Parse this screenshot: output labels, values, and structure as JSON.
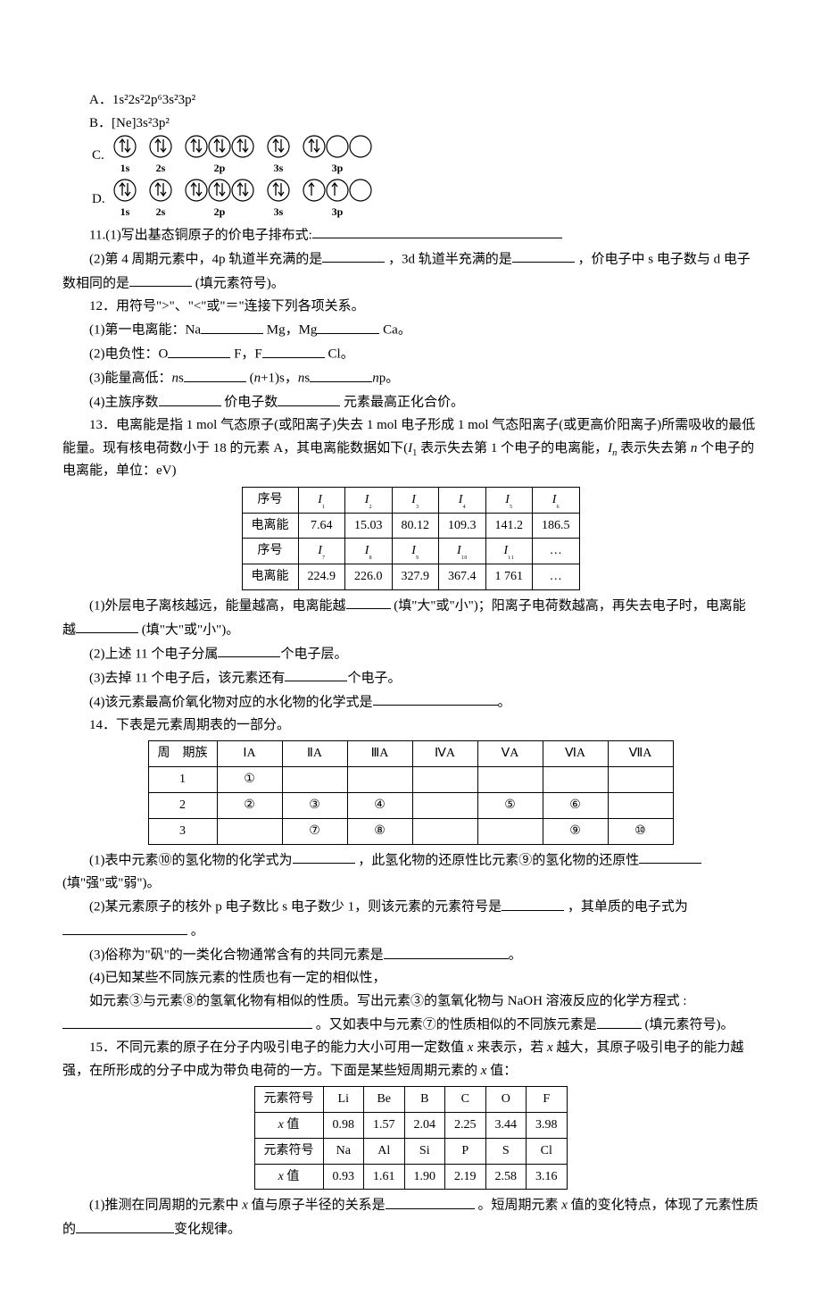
{
  "q10": {
    "optA": "A．1s²2s²2p⁶3s²3p²",
    "optB": "B．[Ne]3s²3p²",
    "optC_label": "C.",
    "optD_label": "D.",
    "orbital_labels": [
      "1s",
      "2s",
      "2p",
      "3s",
      "3p"
    ],
    "orbitals_C": [
      [
        [
          "up",
          "down"
        ]
      ],
      [
        [
          "up",
          "down"
        ]
      ],
      [
        [
          "up",
          "down"
        ],
        [
          "up",
          "down"
        ],
        [
          "up",
          "down"
        ]
      ],
      [
        [
          "up",
          "down"
        ]
      ],
      [
        [
          "up",
          "down"
        ],
        [
          "",
          ""
        ],
        [
          "",
          ""
        ]
      ]
    ],
    "orbitals_D": [
      [
        [
          "up",
          "down"
        ]
      ],
      [
        [
          "up",
          "down"
        ]
      ],
      [
        [
          "up",
          "down"
        ],
        [
          "up",
          "down"
        ],
        [
          "up",
          "down"
        ]
      ],
      [
        [
          "up",
          "down"
        ]
      ],
      [
        [
          "up",
          ""
        ],
        [
          "up",
          ""
        ],
        [
          "",
          ""
        ]
      ]
    ]
  },
  "q11": {
    "p1_a": "11.(1)写出基态铜原子的价电子排布式:",
    "p2_a": "(2)第 4 周期元素中，4p 轨道半充满的是",
    "p2_b": "，3d 轨道半充满的是",
    "p2_c": "，价电子中 s 电子数与 d 电子数相同的是",
    "p2_d": "(填元素符号)。"
  },
  "q12": {
    "stem": "12．用符号\">\"、\"<\"或\"＝\"连接下列各项关系。",
    "p1_a": "(1)第一电离能：Na",
    "p1_b": "Mg，Mg",
    "p1_c": "Ca。",
    "p2_a": "(2)电负性：O",
    "p2_b": "F，F",
    "p2_c": "Cl。",
    "p3_a": "(3)能量高低：",
    "p3_ns": "n",
    "p3_s": "s",
    "p3_b": "(",
    "p3_n1": "n",
    "p3_c": "+1)s，",
    "p3_ns2": "n",
    "p3_s2": "s",
    "p3_np": "n",
    "p3_p": "p。",
    "p4_a": "(4)主族序数",
    "p4_b": "价电子数",
    "p4_c": "元素最高正化合价。"
  },
  "q13": {
    "stem": "13．电离能是指 1 mol 气态原子(或阳离子)失去 1 mol 电子形成 1 mol 气态阳离子(或更高价阳离子)所需吸收的最低能量。现有核电荷数小于 18 的元素 A，其电离能数据如下(",
    "stem_I1a": "I",
    "stem_I1b": "1",
    "stem2": " 表示失去第 1 个电子的电离能，",
    "stem_Ina": "I",
    "stem_Inb": "n",
    "stem3": " 表示失去第 ",
    "stem_n": "n",
    "stem4": " 个电子的电离能，单位：eV)",
    "table": {
      "row1_label": "序号",
      "row1": [
        "I₁",
        "I₂",
        "I₃",
        "I₄",
        "I₅",
        "I₆"
      ],
      "row2_label": "电离能",
      "row2": [
        "7.64",
        "15.03",
        "80.12",
        "109.3",
        "141.2",
        "186.5"
      ],
      "row3_label": "序号",
      "row3": [
        "I₇",
        "I₈",
        "I₉",
        "I₁₀",
        "I₁₁",
        "…"
      ],
      "row4_label": "电离能",
      "row4": [
        "224.9",
        "226.0",
        "327.9",
        "367.4",
        "1 761",
        "…"
      ]
    },
    "p1_a": "(1)外层电子离核越远，能量越高，电离能越",
    "p1_b": "(填\"大\"或\"小\")；阳离子电荷数越高，再失去电子时，电离能越",
    "p1_c": "(填\"大\"或\"小\")。",
    "p2_a": "(2)上述 11 个电子分属",
    "p2_b": "个电子层。",
    "p3_a": "(3)去掉 11 个电子后，该元素还有",
    "p3_b": "个电子。",
    "p4_a": "(4)该元素最高价氧化物对应的水化物的化学式是",
    "p4_b": "。"
  },
  "q14": {
    "stem": "14．下表是元素周期表的一部分。",
    "table": {
      "hdr_label": "周　期族",
      "headers": [
        "ⅠA",
        "ⅡA",
        "ⅢA",
        "ⅣA",
        "ⅤA",
        "ⅥA",
        "ⅦA"
      ],
      "rows": [
        {
          "period": "1",
          "cells": [
            "①",
            "",
            "",
            "",
            "",
            "",
            ""
          ]
        },
        {
          "period": "2",
          "cells": [
            "②",
            "③",
            "④",
            "",
            "⑤",
            "⑥",
            ""
          ]
        },
        {
          "period": "3",
          "cells": [
            "",
            "⑦",
            "⑧",
            "",
            "",
            "⑨",
            "⑩"
          ]
        }
      ]
    },
    "p1_a": "(1)表中元素⑩的氢化物的化学式为",
    "p1_b": "，此氢化物的还原性比元素⑨的氢化物的还原性",
    "p1_c": "(填\"强\"或\"弱\")。",
    "p2_a": "(2)某元素原子的核外 p 电子数比 s 电子数少 1，则该元素的元素符号是",
    "p2_b": "，其单质的电子式为",
    "p2_c": "。",
    "p3_a": "(3)俗称为\"矾\"的一类化合物通常含有的共同元素是",
    "p3_b": "。",
    "p4_a": "(4)已知某些不同族元素的性质也有一定的相似性，",
    "p4_b": "如元素③与元素⑧的氢氧化物有相似的性质。写出元素③的氢氧化物与 NaOH 溶液反应的化学方程式 :",
    "p4_c": "。又如表中与元素⑦的性质相似的不同族元素是",
    "p4_d": "(填元素符号)。"
  },
  "q15": {
    "stem_a": "15．不同元素的原子在分子内吸引电子的能力大小可用一定数值 ",
    "stem_x": "x",
    "stem_b": " 来表示，若 ",
    "stem_c": " 越大，其原子吸引电子的能力越强，在所形成的分子中成为带负电荷的一方。下面是某些短周期元素的 ",
    "stem_d": " 值：",
    "table": {
      "row1_label": "元素符号",
      "row1": [
        "Li",
        "Be",
        "B",
        "C",
        "O",
        "F"
      ],
      "row2_label_a": "x",
      "row2_label_b": " 值",
      "row2": [
        "0.98",
        "1.57",
        "2.04",
        "2.25",
        "3.44",
        "3.98"
      ],
      "row3_label": "元素符号",
      "row3": [
        "Na",
        "Al",
        "Si",
        "P",
        "S",
        "Cl"
      ],
      "row4": [
        "0.93",
        "1.61",
        "1.90",
        "2.19",
        "2.58",
        "3.16"
      ]
    },
    "p1_a": "(1)推测在同周期的元素中 ",
    "p1_b": " 值与原子半径的关系是",
    "p1_c": "。短周期元素 ",
    "p1_d": " 值的变化特点，体现了元素性质的",
    "p1_e": "变化规律。"
  }
}
